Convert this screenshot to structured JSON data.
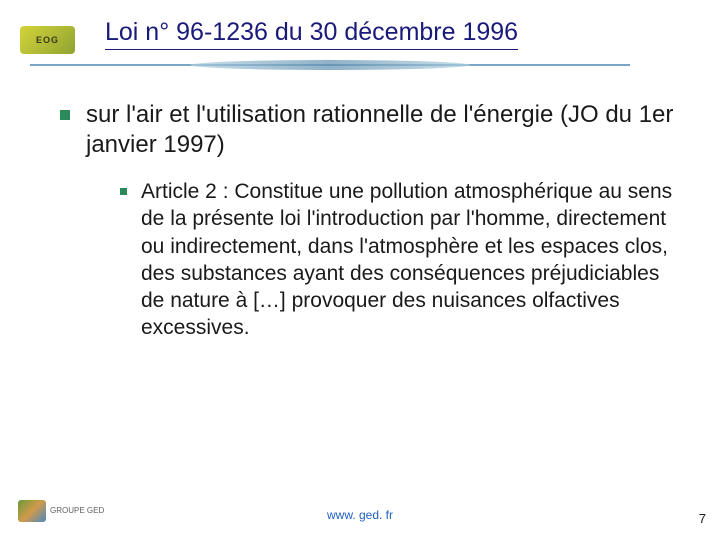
{
  "header": {
    "logo_text": "EOG",
    "title": "Loi n° 96-1236 du 30 décembre 1996"
  },
  "content": {
    "level1": "sur l'air et l'utilisation rationnelle de l'énergie  (JO du 1er janvier 1997)",
    "level2": "Article 2 : Constitue une pollution atmosphérique au sens de la présente loi l'introduction par l'homme, directement ou indirectement, dans l'atmosphère et les espaces clos, des substances ayant des conséquences préjudiciables de nature à […] provoquer des nuisances olfactives excessives."
  },
  "footer": {
    "logo_label": "GROUPE GED",
    "url": "www. ged. fr",
    "page_number": "7"
  },
  "colors": {
    "title_color": "#1a1a7a",
    "bullet_color": "#2a8a5a",
    "body_text": "#1a1a1a",
    "url_color": "#2060c0",
    "background": "#ffffff"
  },
  "typography": {
    "title_fontsize": 25,
    "level1_fontsize": 24,
    "level2_fontsize": 21,
    "footer_fontsize": 12
  }
}
